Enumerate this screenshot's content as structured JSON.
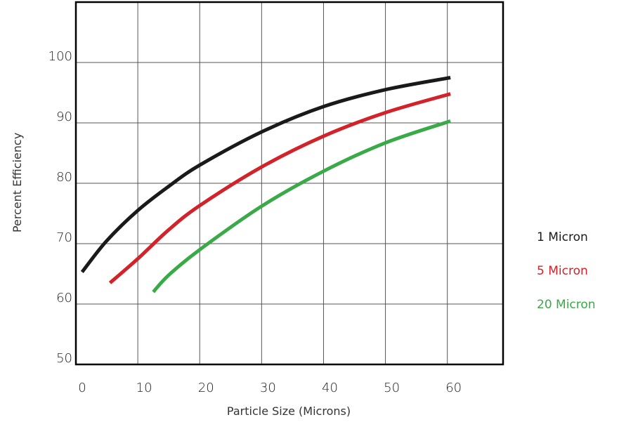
{
  "chart_data": {
    "type": "line",
    "title": "",
    "xlabel": "Particle Size (Microns)",
    "ylabel": "Percent  Efficiency",
    "xlim": [
      0,
      69
    ],
    "ylim": [
      50,
      110
    ],
    "x_ticks": [
      0,
      10,
      20,
      30,
      40,
      50,
      60
    ],
    "y_ticks": [
      50,
      60,
      70,
      80,
      90,
      100
    ],
    "grid": true,
    "legend_position": "right",
    "series": [
      {
        "name": "1 Micron",
        "color": "#1a1a1a",
        "points": [
          [
            1,
            65.3
          ],
          [
            5,
            70.5
          ],
          [
            10,
            75.5
          ],
          [
            15,
            79.5
          ],
          [
            20,
            83
          ],
          [
            30,
            88.5
          ],
          [
            40,
            92.7
          ],
          [
            50,
            95.5
          ],
          [
            60.5,
            97.5
          ]
        ]
      },
      {
        "name": "5 Micron",
        "color": "#d2232a",
        "points": [
          [
            5.5,
            63.5
          ],
          [
            10,
            67.5
          ],
          [
            15,
            72.3
          ],
          [
            20,
            76.3
          ],
          [
            30,
            82.7
          ],
          [
            40,
            87.8
          ],
          [
            50,
            91.7
          ],
          [
            60.5,
            94.8
          ]
        ]
      },
      {
        "name": "20 Micron",
        "color": "#3aaa48",
        "points": [
          [
            12.5,
            62
          ],
          [
            15,
            64.8
          ],
          [
            20,
            69
          ],
          [
            30,
            76.2
          ],
          [
            40,
            82
          ],
          [
            50,
            86.7
          ],
          [
            60.5,
            90.3
          ]
        ]
      }
    ]
  }
}
